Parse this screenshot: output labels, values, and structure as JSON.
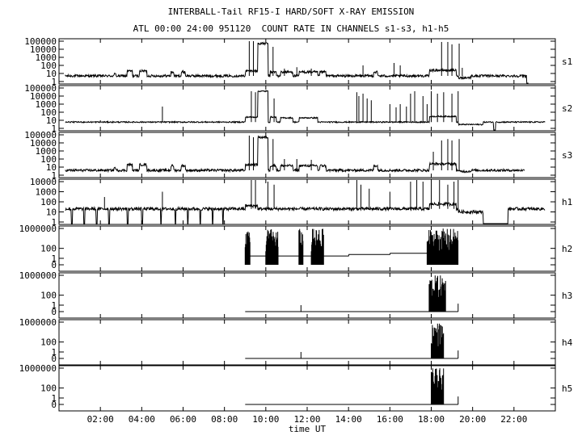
{
  "chart_data": {
    "type": "line",
    "title": "INTERBALL-Tail RF15-I HARD/SOFT X-RAY EMISSION",
    "subtitle": "ATL 00:00 24:00 951120  COUNT RATE IN CHANNELS s1-s3, h1-h5",
    "xlabel": "time UT",
    "xlim_hours": [
      0,
      24
    ],
    "x_ticks": [
      {
        "h": 2,
        "label": "02:00"
      },
      {
        "h": 4,
        "label": "04:00"
      },
      {
        "h": 6,
        "label": "06:00"
      },
      {
        "h": 8,
        "label": "08:00"
      },
      {
        "h": 10,
        "label": "10:00"
      },
      {
        "h": 12,
        "label": "12:00"
      },
      {
        "h": 14,
        "label": "14:00"
      },
      {
        "h": 16,
        "label": "16:00"
      },
      {
        "h": 18,
        "label": "18:00"
      },
      {
        "h": 20,
        "label": "20:00"
      },
      {
        "h": 22,
        "label": "22:00"
      }
    ],
    "grid": false,
    "panels": [
      {
        "name": "s1",
        "yscale": "log",
        "y_ticks": [
          "100000",
          "10000",
          "1000",
          "100",
          "10",
          "1"
        ],
        "y_tick_values": [
          100000,
          10000,
          1000,
          100,
          10,
          1
        ],
        "baseline": 5,
        "noise": 2,
        "data_start": 0.3,
        "data_end": 22.7,
        "level_segments": [
          [
            2.65,
            2.75,
            8
          ],
          [
            3.3,
            3.55,
            20
          ],
          [
            3.9,
            4.25,
            20
          ],
          [
            5.4,
            5.55,
            15
          ],
          [
            5.9,
            6.1,
            15
          ],
          [
            9.0,
            9.6,
            20
          ],
          [
            9.6,
            10.1,
            50000
          ],
          [
            10.2,
            10.5,
            15
          ],
          [
            10.7,
            11.3,
            15
          ],
          [
            11.6,
            12.5,
            15
          ],
          [
            12.6,
            12.9,
            15
          ],
          [
            15.2,
            15.4,
            15
          ],
          [
            17.9,
            19.2,
            25
          ],
          [
            19.3,
            19.9,
            3
          ]
        ],
        "spikes": [
          [
            9.2,
            100000
          ],
          [
            9.4,
            100000
          ],
          [
            10.35,
            20000
          ],
          [
            10.9,
            40
          ],
          [
            11.5,
            60
          ],
          [
            12.2,
            40
          ],
          [
            14.7,
            100
          ],
          [
            16.2,
            200
          ],
          [
            16.5,
            100
          ],
          [
            18.5,
            80000
          ],
          [
            18.8,
            80000
          ],
          [
            19.0,
            40000
          ],
          [
            19.35,
            50000
          ],
          [
            19.5,
            50
          ]
        ],
        "gaps": [
          [
            22.6,
            22.8
          ]
        ]
      },
      {
        "name": "s2",
        "yscale": "log",
        "y_ticks": [
          "100000",
          "10000",
          "1000",
          "100",
          "10",
          "1"
        ],
        "y_tick_values": [
          100000,
          10000,
          1000,
          100,
          10,
          1
        ],
        "baseline": 6,
        "noise": 1,
        "data_start": 0.3,
        "data_end": 23.5,
        "level_segments": [
          [
            9.0,
            9.6,
            25
          ],
          [
            9.6,
            10.1,
            40000
          ],
          [
            10.2,
            10.5,
            25
          ],
          [
            10.7,
            11.3,
            20
          ],
          [
            11.6,
            12.5,
            20
          ],
          [
            17.9,
            19.2,
            30
          ],
          [
            19.3,
            20.5,
            3
          ]
        ],
        "spikes": [
          [
            2.0,
            10
          ],
          [
            5.0,
            500
          ],
          [
            9.3,
            40000
          ],
          [
            9.5,
            30000
          ],
          [
            10.4,
            5000
          ],
          [
            14.4,
            30000
          ],
          [
            14.5,
            10000
          ],
          [
            14.7,
            20000
          ],
          [
            14.9,
            5000
          ],
          [
            15.1,
            3000
          ],
          [
            16.0,
            1000
          ],
          [
            16.3,
            400
          ],
          [
            16.5,
            1000
          ],
          [
            16.8,
            500
          ],
          [
            17.0,
            20000
          ],
          [
            17.2,
            40000
          ],
          [
            17.6,
            10000
          ],
          [
            17.8,
            1000
          ],
          [
            18.0,
            40000
          ],
          [
            18.3,
            20000
          ],
          [
            18.6,
            30000
          ],
          [
            19.0,
            20000
          ],
          [
            19.3,
            40000
          ]
        ],
        "gaps": [
          [
            21.0,
            21.1
          ]
        ]
      },
      {
        "name": "s3",
        "yscale": "log",
        "y_ticks": [
          "100000",
          "10000",
          "1000",
          "100",
          "10",
          "1"
        ],
        "y_tick_values": [
          100000,
          10000,
          1000,
          100,
          10,
          1
        ],
        "baseline": 4,
        "noise": 2,
        "data_start": 0.3,
        "data_end": 22.5,
        "level_segments": [
          [
            2.65,
            2.75,
            8
          ],
          [
            3.3,
            3.55,
            20
          ],
          [
            3.9,
            4.25,
            20
          ],
          [
            5.4,
            5.55,
            15
          ],
          [
            5.9,
            6.1,
            15
          ],
          [
            9.0,
            9.6,
            20
          ],
          [
            9.6,
            10.1,
            50000
          ],
          [
            10.2,
            10.5,
            15
          ],
          [
            10.7,
            11.3,
            15
          ],
          [
            11.6,
            12.5,
            15
          ],
          [
            12.6,
            12.9,
            15
          ],
          [
            15.2,
            15.4,
            15
          ],
          [
            17.9,
            19.2,
            25
          ],
          [
            19.3,
            19.9,
            3
          ]
        ],
        "spikes": [
          [
            9.2,
            80000
          ],
          [
            9.4,
            50000
          ],
          [
            10.35,
            30000
          ],
          [
            10.9,
            100
          ],
          [
            11.5,
            100
          ],
          [
            12.2,
            80
          ],
          [
            18.1,
            800
          ],
          [
            18.5,
            20000
          ],
          [
            18.8,
            30000
          ],
          [
            19.0,
            20000
          ],
          [
            19.35,
            30000
          ]
        ],
        "gaps": [
          [
            22.6,
            22.8
          ]
        ]
      },
      {
        "name": "h1",
        "yscale": "log",
        "y_ticks": [
          "10000",
          "1000",
          "100",
          "10",
          "1"
        ],
        "y_tick_values": [
          10000,
          1000,
          100,
          10,
          1
        ],
        "baseline": 20,
        "noise": 2,
        "data_start": 0.3,
        "data_end": 23.5,
        "level_segments": [
          [
            9.0,
            9.6,
            40
          ],
          [
            17.9,
            19.2,
            60
          ],
          [
            19.3,
            20.5,
            10
          ]
        ],
        "spikes": [
          [
            2.2,
            300
          ],
          [
            5.0,
            1000
          ],
          [
            9.3,
            20000
          ],
          [
            9.5,
            20000
          ],
          [
            10.1,
            10000
          ],
          [
            10.4,
            5000
          ],
          [
            14.4,
            20000
          ],
          [
            14.6,
            5000
          ],
          [
            15.0,
            2000
          ],
          [
            16.0,
            1000
          ],
          [
            17.0,
            10000
          ],
          [
            17.3,
            20000
          ],
          [
            17.6,
            10000
          ],
          [
            18.0,
            20000
          ],
          [
            18.4,
            20000
          ],
          [
            18.8,
            5000
          ],
          [
            19.1,
            10000
          ],
          [
            19.3,
            20000
          ]
        ],
        "gaps": [
          [
            0.6,
            0.65
          ],
          [
            1.2,
            1.25
          ],
          [
            1.8,
            1.85
          ],
          [
            2.4,
            2.45
          ],
          [
            3.3,
            3.35
          ],
          [
            4.0,
            4.05
          ],
          [
            4.9,
            4.95
          ],
          [
            5.6,
            5.65
          ],
          [
            6.2,
            6.25
          ],
          [
            6.8,
            6.85
          ],
          [
            7.4,
            7.45
          ],
          [
            7.9,
            7.95
          ],
          [
            20.5,
            21.7
          ],
          [
            23.5,
            24.0
          ]
        ]
      },
      {
        "name": "h2",
        "yscale": "log",
        "y_ticks": [
          "1000000",
          "100",
          "1",
          "0"
        ],
        "y_tick_values": [
          1000000,
          100,
          1,
          0
        ],
        "baseline": 3,
        "noise": 0,
        "data_start": 9.0,
        "data_end": 19.3,
        "level_segments": [
          [
            9.0,
            10.0,
            3
          ],
          [
            10.0,
            14.0,
            3
          ],
          [
            14.0,
            16.0,
            6
          ],
          [
            16.0,
            18.0,
            10
          ]
        ],
        "bursts": [
          [
            9.0,
            9.25
          ],
          [
            10.0,
            10.6
          ],
          [
            11.6,
            11.8
          ],
          [
            12.2,
            12.8
          ],
          [
            17.8,
            19.3
          ]
        ],
        "gaps": []
      },
      {
        "name": "h3",
        "yscale": "log",
        "y_ticks": [
          "1000000",
          "100",
          "1",
          "0"
        ],
        "y_tick_values": [
          1000000,
          100,
          1,
          0
        ],
        "baseline": 0,
        "noise": 0,
        "data_start": 9.0,
        "data_end": 19.3,
        "level_segments": [],
        "bursts": [
          [
            17.9,
            18.7
          ]
        ],
        "spikes": [
          [
            11.7,
            1
          ],
          [
            19.3,
            2
          ]
        ],
        "gaps": []
      },
      {
        "name": "h4",
        "yscale": "log",
        "y_ticks": [
          "1000000",
          "100",
          "1",
          "0"
        ],
        "y_tick_values": [
          1000000,
          100,
          1,
          0
        ],
        "baseline": 0,
        "noise": 0,
        "data_start": 9.0,
        "data_end": 19.3,
        "level_segments": [],
        "bursts": [
          [
            18.0,
            18.6
          ]
        ],
        "spikes": [
          [
            11.7,
            1
          ],
          [
            19.3,
            2
          ]
        ],
        "gaps": []
      },
      {
        "name": "h5",
        "yscale": "log",
        "y_ticks": [
          "1000000",
          "100",
          "1",
          "0"
        ],
        "y_tick_values": [
          1000000,
          100,
          1,
          0
        ],
        "baseline": 0,
        "noise": 0,
        "data_start": 9.0,
        "data_end": 19.3,
        "level_segments": [],
        "bursts": [
          [
            18.0,
            18.6
          ]
        ],
        "spikes": [
          [
            19.3,
            2
          ]
        ],
        "gaps": []
      }
    ]
  }
}
